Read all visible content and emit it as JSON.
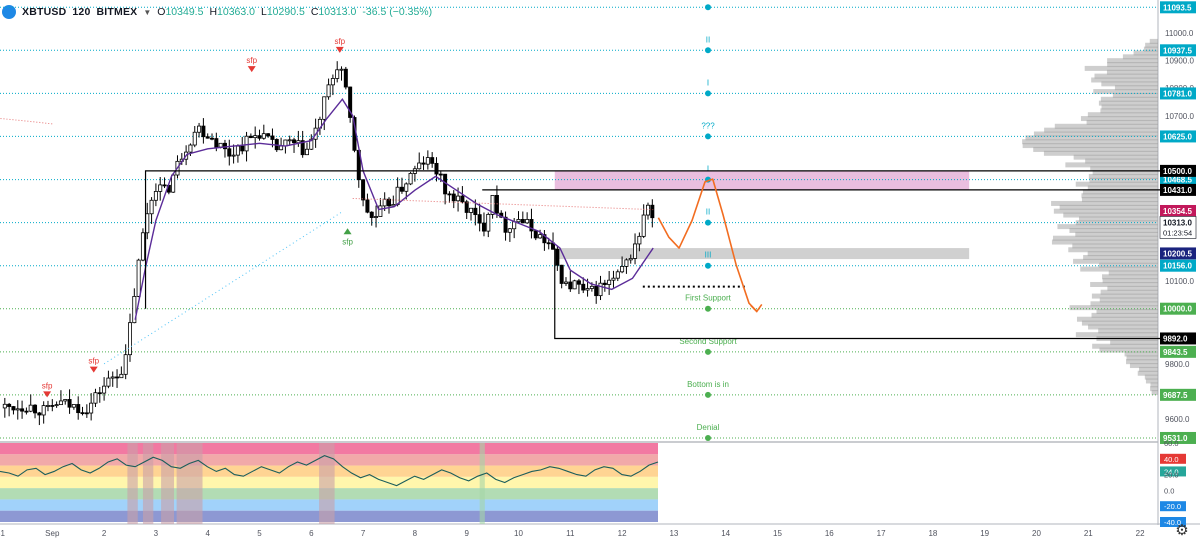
{
  "header": {
    "symbol": "XBTUSD",
    "interval": "120",
    "exchange": "BITMEX",
    "open_label": "O",
    "open": "10349.5",
    "high_label": "H",
    "high": "10363.0",
    "low_label": "L",
    "low": "10290.5",
    "close_label": "C",
    "close": "10313.0",
    "change": "-36.5 (−0.35%)"
  },
  "colors": {
    "up": "#26a69a",
    "down": "#000000",
    "ma": "#5b2c99",
    "cyan_line": "#00a9c7",
    "green_line": "#4caf50",
    "orange_path": "#f26d21",
    "pink_zone": "#e6b3d9",
    "grey_zone": "#c8c8c8"
  },
  "chart_data": {
    "type": "candlestick",
    "symbol": "XBTUSD",
    "interval": "120",
    "y_range": [
      9520,
      11120
    ],
    "y_ticks": [
      9600,
      9700,
      9800,
      9900,
      10000,
      10100,
      10200,
      10300,
      10400,
      10500,
      10600,
      10700,
      10800,
      10900,
      11000
    ],
    "y_tick_labels": [
      "9600.0",
      "",
      "9800.0",
      "",
      "10000.0",
      "10100.0",
      "",
      "",
      "",
      "",
      "",
      "10700.0",
      "10800.0",
      "10900.0",
      "11000.0"
    ],
    "x_range": [
      0,
      22.6
    ],
    "x_ticks": [
      {
        "x": 0,
        "label": "31"
      },
      {
        "x": 1,
        "label": "Sep"
      },
      {
        "x": 2,
        "label": "2"
      },
      {
        "x": 3,
        "label": "3"
      },
      {
        "x": 4,
        "label": "4"
      },
      {
        "x": 5,
        "label": "5"
      },
      {
        "x": 6,
        "label": "6"
      },
      {
        "x": 7,
        "label": "7"
      },
      {
        "x": 8,
        "label": "8"
      },
      {
        "x": 9,
        "label": "9"
      },
      {
        "x": 10,
        "label": "10"
      },
      {
        "x": 11,
        "label": "11"
      },
      {
        "x": 12,
        "label": "12"
      },
      {
        "x": 13,
        "label": "13"
      },
      {
        "x": 14,
        "label": "14"
      },
      {
        "x": 15,
        "label": "15"
      },
      {
        "x": 16,
        "label": "16"
      },
      {
        "x": 17,
        "label": "17"
      },
      {
        "x": 18,
        "label": "18"
      },
      {
        "x": 19,
        "label": "19"
      },
      {
        "x": 20,
        "label": "20"
      },
      {
        "x": 21,
        "label": "21"
      },
      {
        "x": 22,
        "label": "22"
      }
    ],
    "price_path": [
      [
        0,
        9640
      ],
      [
        0.5,
        9650
      ],
      [
        0.9,
        9625
      ],
      [
        1.1,
        9660
      ],
      [
        1.4,
        9645
      ],
      [
        1.7,
        9640
      ],
      [
        1.9,
        9700
      ],
      [
        2.2,
        9760
      ],
      [
        2.4,
        9790
      ],
      [
        2.6,
        10080
      ],
      [
        2.8,
        10330
      ],
      [
        3.0,
        10450
      ],
      [
        3.2,
        10420
      ],
      [
        3.5,
        10560
      ],
      [
        3.8,
        10660
      ],
      [
        4.1,
        10620
      ],
      [
        4.4,
        10560
      ],
      [
        4.7,
        10600
      ],
      [
        5.0,
        10640
      ],
      [
        5.3,
        10580
      ],
      [
        5.6,
        10600
      ],
      [
        5.9,
        10570
      ],
      [
        6.1,
        10650
      ],
      [
        6.3,
        10780
      ],
      [
        6.5,
        10880
      ],
      [
        6.6,
        10860
      ],
      [
        6.8,
        10620
      ],
      [
        7.0,
        10380
      ],
      [
        7.2,
        10320
      ],
      [
        7.4,
        10370
      ],
      [
        7.6,
        10400
      ],
      [
        7.9,
        10480
      ],
      [
        8.2,
        10540
      ],
      [
        8.4,
        10510
      ],
      [
        8.6,
        10420
      ],
      [
        8.9,
        10380
      ],
      [
        9.1,
        10350
      ],
      [
        9.3,
        10280
      ],
      [
        9.5,
        10420
      ],
      [
        9.7,
        10290
      ],
      [
        10.0,
        10330
      ],
      [
        10.3,
        10280
      ],
      [
        10.6,
        10230
      ],
      [
        10.9,
        10080
      ],
      [
        11.1,
        10090
      ],
      [
        11.3,
        10050
      ],
      [
        11.6,
        10080
      ],
      [
        11.9,
        10110
      ],
      [
        12.1,
        10170
      ],
      [
        12.3,
        10250
      ],
      [
        12.5,
        10380
      ],
      [
        12.6,
        10313
      ]
    ],
    "ma_line": [
      [
        2.6,
        9960
      ],
      [
        2.8,
        10150
      ],
      [
        3.0,
        10320
      ],
      [
        3.3,
        10480
      ],
      [
        3.6,
        10560
      ],
      [
        4.0,
        10580
      ],
      [
        4.5,
        10590
      ],
      [
        5.0,
        10600
      ],
      [
        5.5,
        10590
      ],
      [
        6.0,
        10610
      ],
      [
        6.3,
        10690
      ],
      [
        6.6,
        10760
      ],
      [
        6.8,
        10700
      ],
      [
        7.0,
        10500
      ],
      [
        7.3,
        10360
      ],
      [
        7.6,
        10370
      ],
      [
        8.0,
        10430
      ],
      [
        8.4,
        10480
      ],
      [
        8.8,
        10430
      ],
      [
        9.2,
        10380
      ],
      [
        9.6,
        10340
      ],
      [
        10.0,
        10310
      ],
      [
        10.4,
        10280
      ],
      [
        10.8,
        10220
      ],
      [
        11.0,
        10140
      ],
      [
        11.4,
        10090
      ],
      [
        11.8,
        10070
      ],
      [
        12.2,
        10110
      ],
      [
        12.6,
        10220
      ]
    ],
    "hlines": [
      {
        "price": 11093.5,
        "label": "11093.5",
        "style": "cyan"
      },
      {
        "price": 10937.5,
        "label": "10937.5",
        "style": "cyan"
      },
      {
        "price": 10781.0,
        "label": "10781.0",
        "style": "cyan"
      },
      {
        "price": 10625.0,
        "label": "10625.0",
        "style": "cyan"
      },
      {
        "price": 10468.5,
        "label": "10468.5",
        "style": "cyan"
      },
      {
        "price": 10312.5,
        "label": "10312.5",
        "style": "cyan"
      },
      {
        "price": 10156.0,
        "label": "10156.0",
        "style": "cyan"
      },
      {
        "price": 10000.0,
        "label": "10000.0",
        "style": "green"
      },
      {
        "price": 9843.5,
        "label": "9843.5",
        "style": "green"
      },
      {
        "price": 9687.5,
        "label": "9687.5",
        "style": "green"
      },
      {
        "price": 9531.0,
        "label": "9531.0",
        "style": "green"
      }
    ],
    "level_labels": [
      {
        "price": 11093.5,
        "text": "III",
        "color": "cyan"
      },
      {
        "price": 10937.5,
        "text": "II",
        "color": "cyan"
      },
      {
        "price": 10781.0,
        "text": "I",
        "color": "cyan"
      },
      {
        "price": 10625.0,
        "text": "???",
        "color": "cyan"
      },
      {
        "price": 10468.5,
        "text": "I",
        "color": "cyan"
      },
      {
        "price": 10312.5,
        "text": "II",
        "color": "cyan"
      },
      {
        "price": 10156.0,
        "text": "III",
        "color": "cyan"
      },
      {
        "price": 10000.0,
        "text": "First Support",
        "color": "green"
      },
      {
        "price": 9843.5,
        "text": "Second Support",
        "color": "green"
      },
      {
        "price": 9687.5,
        "text": "Bottom is in",
        "color": "green"
      },
      {
        "price": 9531.0,
        "text": "Denial",
        "color": "green"
      }
    ],
    "axis_badges": [
      {
        "price": 10500.0,
        "label": "10500.0",
        "bg": "#000000"
      },
      {
        "price": 10431.0,
        "label": "10431.0",
        "bg": "#000000"
      },
      {
        "price": 10354.5,
        "label": "10354.5",
        "bg": "#c2185b"
      },
      {
        "price": 10313.0,
        "label": "10313.0",
        "bg": "#ffffff",
        "text_color": "#131722",
        "sub": "01:23:54"
      },
      {
        "price": 10200.5,
        "label": "10200.5",
        "bg": "#1a237e"
      },
      {
        "price": 9892.0,
        "label": "9892.0",
        "bg": "#000000"
      }
    ],
    "zones": [
      {
        "label": "pink_resistance",
        "x_from": 10.7,
        "x_to": 18.7,
        "price_from": 10431,
        "price_to": 10500
      },
      {
        "label": "grey_support",
        "x_from": 10.7,
        "x_to": 18.7,
        "price_from": 10180,
        "price_to": 10220
      }
    ],
    "range_box": {
      "x_from": 2.8,
      "x_to": 22.6,
      "top": 10500,
      "top2": 10431,
      "x2_from": 9.3
    },
    "bottom_box": {
      "x_from": 10.7,
      "x_to": 22.6,
      "price": 9892
    },
    "dotted_level": {
      "x_from": 12.4,
      "x_to": 14.4,
      "price": 10080
    },
    "projection": [
      [
        12.7,
        10330
      ],
      [
        12.9,
        10260
      ],
      [
        13.1,
        10220
      ],
      [
        13.35,
        10320
      ],
      [
        13.6,
        10460
      ],
      [
        13.75,
        10470
      ],
      [
        13.95,
        10340
      ],
      [
        14.2,
        10160
      ],
      [
        14.45,
        10020
      ],
      [
        14.6,
        9990
      ]
    ],
    "sfp_markers": [
      {
        "x": 0.9,
        "price": 9700,
        "dir": "down",
        "text": "sfp"
      },
      {
        "x": 1.8,
        "price": 9790,
        "dir": "down",
        "text": "sfp"
      },
      {
        "x": 4.85,
        "price": 10880,
        "dir": "down",
        "text": "sfp"
      },
      {
        "x": 6.55,
        "price": 10950,
        "dir": "down",
        "text": "sfp"
      },
      {
        "x": 6.7,
        "price": 10270,
        "dir": "up",
        "text": "sfp"
      }
    ],
    "volume_profile_note": "horizontal volume profile on right edge",
    "oscillator": {
      "levels": [
        60.0,
        40.0,
        24.0,
        20.0,
        0.0,
        -20.0,
        -40.0
      ],
      "level_labels": [
        "60.0",
        "40.0",
        "24.0",
        "20.0",
        "0.0",
        "-20.0",
        "-40.0"
      ],
      "value_badge": "24.0",
      "bands": [
        "#f06292",
        "#ef9a9a",
        "#ffcc80",
        "#fff59d",
        "#a5d6a7",
        "#90caf9",
        "#7986cb"
      ],
      "values": [
        24,
        22,
        18,
        26,
        28,
        20,
        24,
        30,
        34,
        26,
        22,
        28,
        36,
        40,
        32,
        30,
        36,
        42,
        38,
        30,
        28,
        34,
        38,
        30,
        24,
        28,
        20,
        18,
        24,
        30,
        26,
        22,
        30,
        36,
        32,
        38,
        44,
        40,
        30,
        22,
        16,
        20,
        14,
        10,
        6,
        12,
        18,
        14,
        20,
        26,
        22,
        16,
        12,
        18,
        22,
        14,
        10,
        16,
        20,
        24,
        26,
        30,
        28,
        24,
        20,
        18,
        26,
        30,
        28,
        20,
        18,
        24,
        32,
        36
      ]
    }
  }
}
